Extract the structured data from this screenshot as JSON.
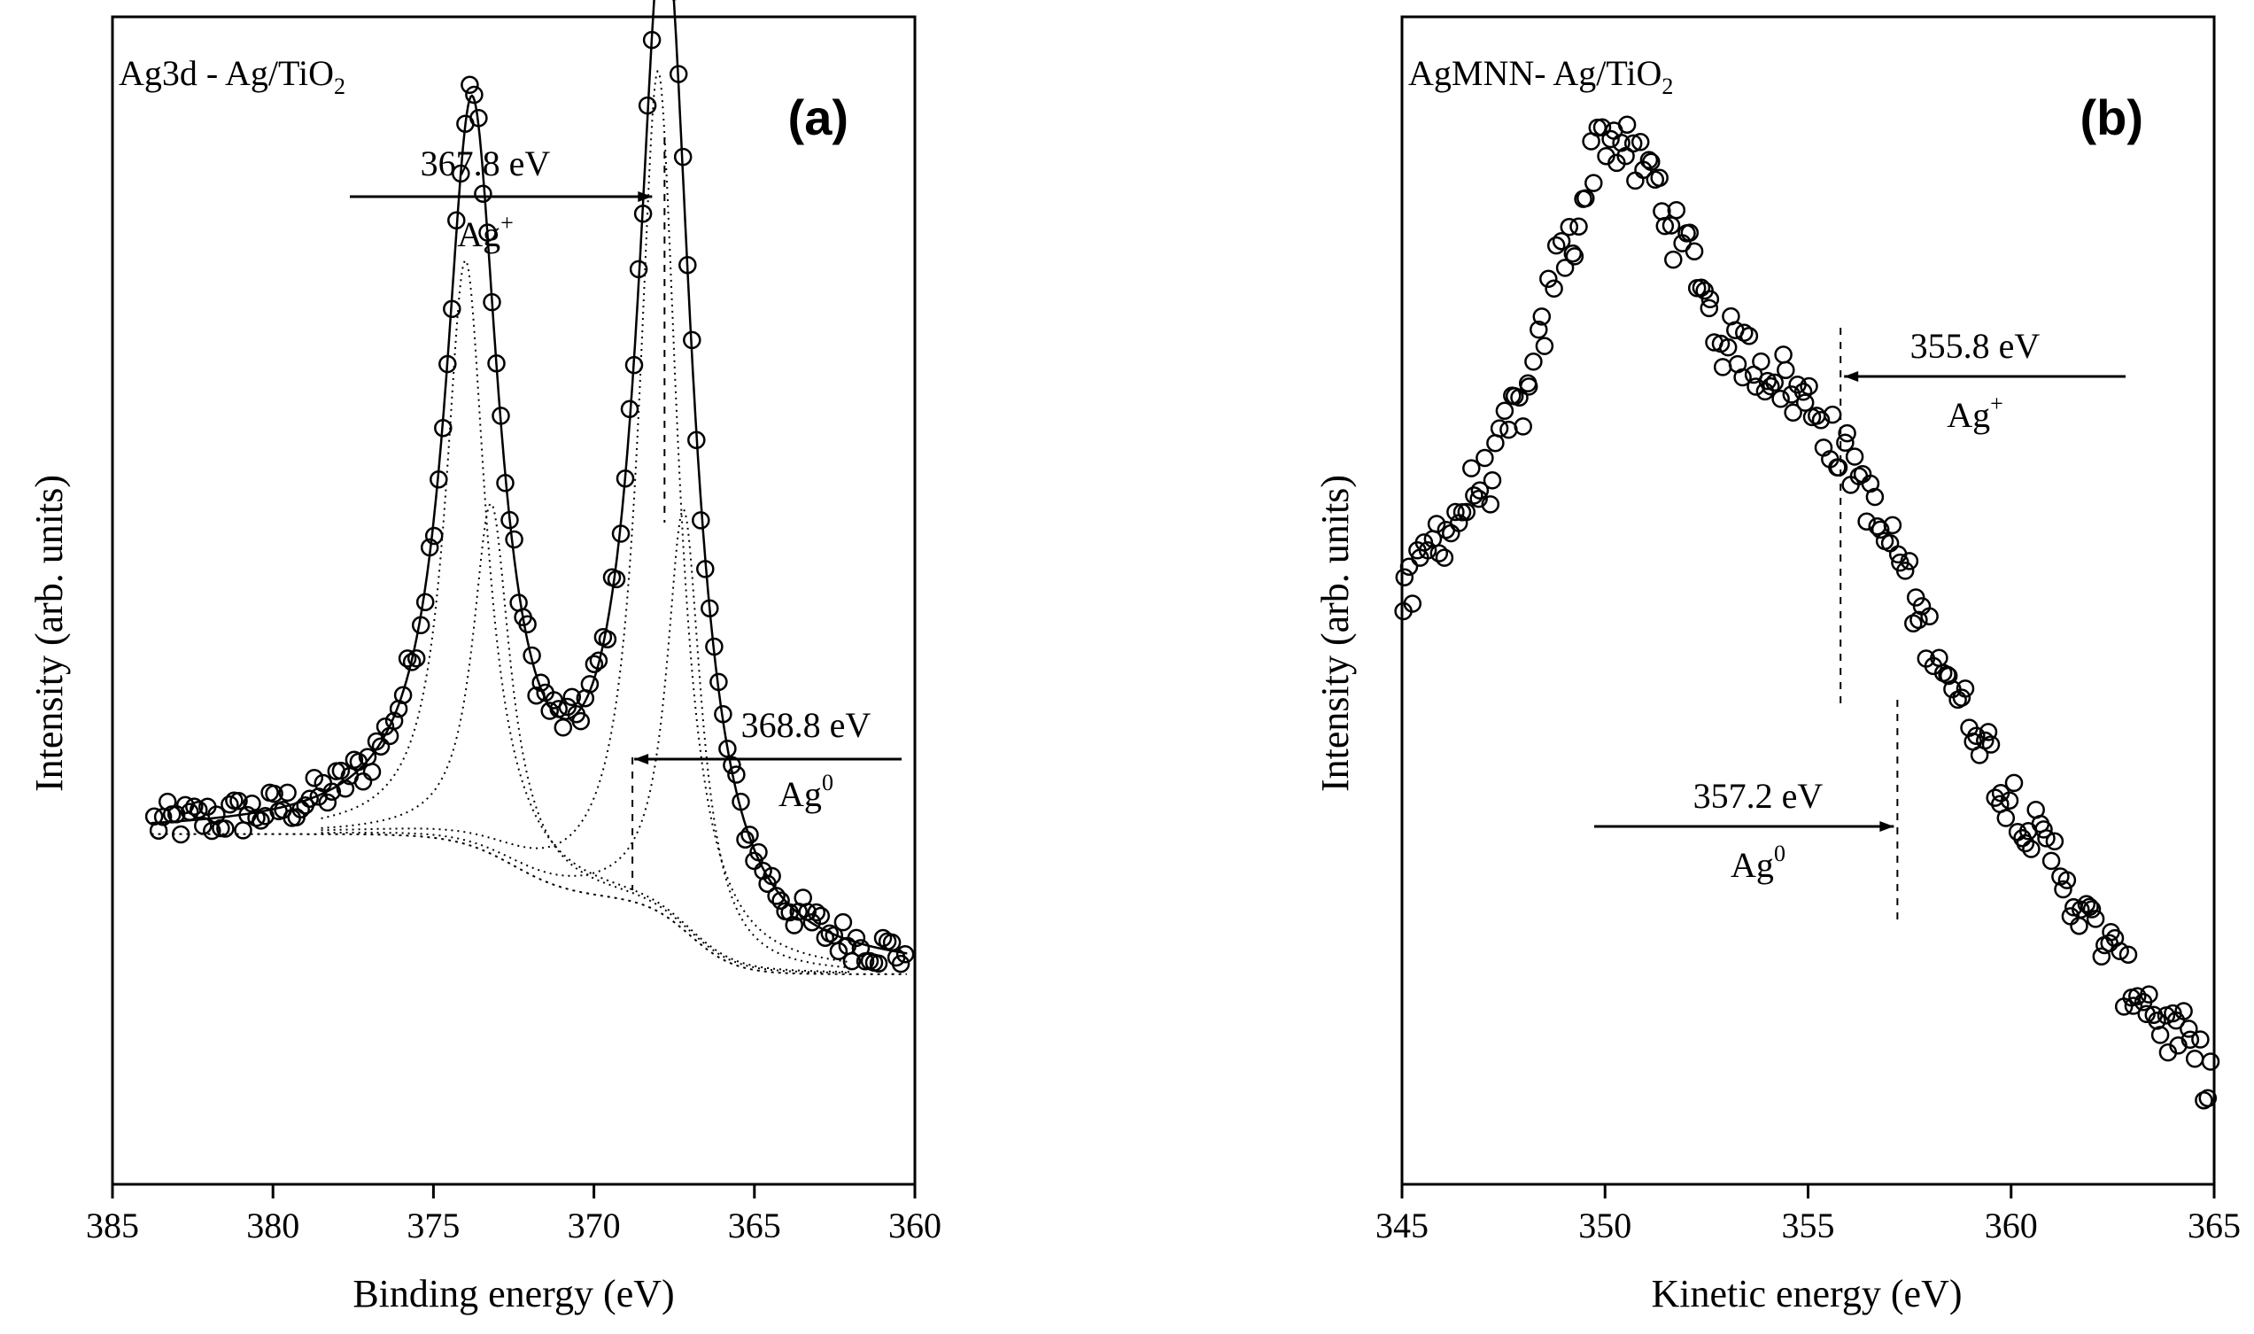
{
  "chart_data": [
    {
      "type": "scatter",
      "panel": "(a)",
      "title": "Ag3d - Ag/TiO",
      "title_sub": "2",
      "xlabel": "Binding energy (eV)",
      "ylabel": "Intensity (arb. units)",
      "xlim": [
        385,
        360
      ],
      "ylim": [
        0,
        100
      ],
      "xticks": [
        385,
        380,
        375,
        370,
        365,
        360
      ],
      "peaks": [
        {
          "center": 373.8,
          "height": 62,
          "width": 1.0
        },
        {
          "center": 367.8,
          "height": 84,
          "width": 1.0
        }
      ],
      "background": {
        "left": 30,
        "right": 18
      },
      "points_range": [
        383.7,
        360.3
      ],
      "point_count": 170,
      "annotations": [
        {
          "label": "367.8 eV",
          "species": "Ag",
          "sup": "+",
          "x": 367.8
        },
        {
          "label": "368.8 eV",
          "species": "Ag",
          "sup": "0",
          "x": 368.8
        }
      ]
    },
    {
      "type": "scatter",
      "panel": "(b)",
      "title": "AgMNN- Ag/TiO",
      "title_sub": "2",
      "xlabel": "Kinetic energy (eV)",
      "ylabel": "Intensity (arb. units)",
      "xlim": [
        345,
        365
      ],
      "ylim": [
        0,
        100
      ],
      "xticks": [
        345,
        350,
        355,
        360,
        365
      ],
      "points_range": [
        345.0,
        364.9
      ],
      "point_count": 215,
      "profile": [
        [
          345,
          50
        ],
        [
          346,
          56
        ],
        [
          347,
          60
        ],
        [
          348,
          67
        ],
        [
          349,
          80
        ],
        [
          350,
          90
        ],
        [
          351,
          87
        ],
        [
          352,
          80
        ],
        [
          353,
          72
        ],
        [
          354,
          70
        ],
        [
          355,
          67
        ],
        [
          356,
          62
        ],
        [
          357,
          55
        ],
        [
          358,
          47
        ],
        [
          359,
          40
        ],
        [
          360,
          33
        ],
        [
          361,
          28
        ],
        [
          362,
          22
        ],
        [
          363,
          17
        ],
        [
          364,
          13
        ],
        [
          365,
          9
        ]
      ],
      "annotations": [
        {
          "label": "355.8 eV",
          "species": "Ag",
          "sup": "+",
          "x": 355.8
        },
        {
          "label": "357.2 eV",
          "species": "Ag",
          "sup": "0",
          "x": 357.2
        }
      ]
    }
  ]
}
